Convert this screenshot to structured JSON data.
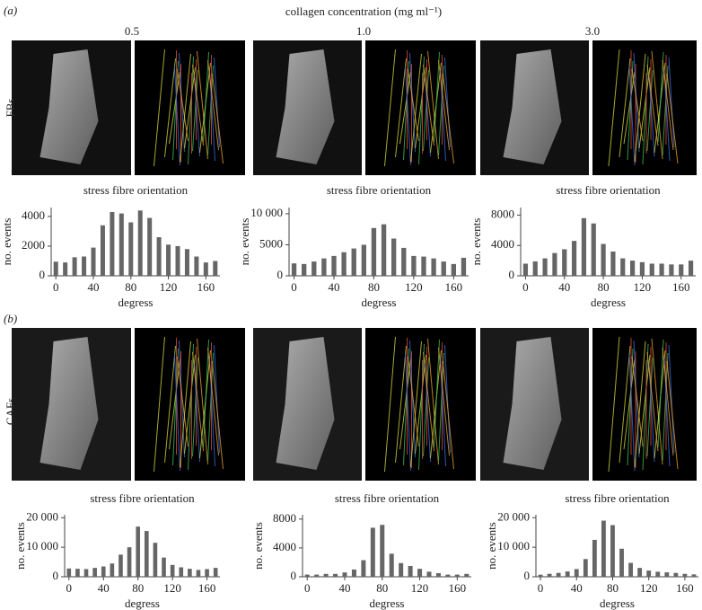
{
  "figure": {
    "panel_a": "(a)",
    "panel_b": "(b)",
    "heading": "collagen concentration (mg ml⁻¹)",
    "concentrations": [
      "0.5",
      "1.0",
      "3.0"
    ],
    "rows": [
      "FBs",
      "CAFs"
    ]
  },
  "chart_data": [
    {
      "type": "bar",
      "title": "stress fibre orientation",
      "x_label": "degress",
      "y_label": "no. events",
      "color": "#666666",
      "x": [
        0,
        10,
        20,
        30,
        40,
        50,
        60,
        70,
        80,
        90,
        100,
        110,
        120,
        130,
        140,
        150,
        160,
        170
      ],
      "values": [
        950,
        900,
        1250,
        1300,
        1900,
        3400,
        4300,
        4200,
        3600,
        4400,
        3900,
        2600,
        2100,
        2000,
        1800,
        1300,
        900,
        1000
      ],
      "xlim": [
        -5,
        175
      ],
      "xticks": [
        0,
        40,
        80,
        120,
        160
      ],
      "ylim": [
        0,
        4600
      ],
      "yticks": [
        0,
        2000,
        4000
      ]
    },
    {
      "type": "bar",
      "title": "stress fibre orientation",
      "x_label": "degress",
      "y_label": "no. events",
      "color": "#666666",
      "x": [
        0,
        10,
        20,
        30,
        40,
        50,
        60,
        70,
        80,
        90,
        100,
        110,
        120,
        130,
        140,
        150,
        160,
        170
      ],
      "values": [
        2000,
        1900,
        2300,
        2800,
        3200,
        3800,
        4400,
        5000,
        7700,
        8300,
        6000,
        4500,
        3200,
        3100,
        2800,
        2300,
        1900,
        2900
      ],
      "xlim": [
        -5,
        175
      ],
      "xticks": [
        0,
        40,
        80,
        120,
        160
      ],
      "ylim": [
        0,
        11000
      ],
      "yticks": [
        0,
        5000,
        {
          "value": 10000,
          "label": "10 000"
        }
      ]
    },
    {
      "type": "bar",
      "title": "stress fibre orientation",
      "x_label": "degress",
      "y_label": "no. events",
      "color": "#666666",
      "x": [
        0,
        10,
        20,
        30,
        40,
        50,
        60,
        70,
        80,
        90,
        100,
        110,
        120,
        130,
        140,
        150,
        160,
        170
      ],
      "values": [
        1600,
        1900,
        2300,
        3000,
        3500,
        4600,
        7600,
        6900,
        4200,
        3200,
        2300,
        2000,
        1800,
        1600,
        1600,
        1500,
        1500,
        2000
      ],
      "xlim": [
        -5,
        175
      ],
      "xticks": [
        0,
        40,
        80,
        120,
        160
      ],
      "ylim": [
        0,
        9000
      ],
      "yticks": [
        0,
        4000,
        8000
      ]
    },
    {
      "type": "bar",
      "title": "stress fibre orientation",
      "x_label": "degress",
      "y_label": "no. events",
      "color": "#666666",
      "x": [
        0,
        10,
        20,
        30,
        40,
        50,
        60,
        70,
        80,
        90,
        100,
        110,
        120,
        130,
        140,
        150,
        160,
        170
      ],
      "values": [
        2800,
        2700,
        2600,
        3000,
        3500,
        4500,
        7500,
        10000,
        17000,
        15500,
        11500,
        6500,
        4000,
        3200,
        2700,
        2300,
        2600,
        3000
      ],
      "xlim": [
        -5,
        175
      ],
      "xticks": [
        0,
        40,
        80,
        120,
        160
      ],
      "ylim": [
        0,
        21000
      ],
      "yticks": [
        0,
        {
          "value": 10000,
          "label": "10 000"
        },
        {
          "value": 20000,
          "label": "20 000"
        }
      ]
    },
    {
      "type": "bar",
      "title": "stress fibre orientation",
      "x_label": "degress",
      "y_label": "no. events",
      "color": "#666666",
      "x": [
        0,
        10,
        20,
        30,
        40,
        50,
        60,
        70,
        80,
        90,
        100,
        110,
        120,
        130,
        140,
        150,
        160,
        170
      ],
      "values": [
        300,
        300,
        400,
        400,
        600,
        1000,
        2300,
        6800,
        7200,
        3200,
        1900,
        1500,
        1100,
        700,
        500,
        300,
        300,
        400
      ],
      "xlim": [
        -5,
        175
      ],
      "xticks": [
        0,
        40,
        80,
        120,
        160
      ],
      "ylim": [
        0,
        8600
      ],
      "yticks": [
        0,
        4000,
        8000
      ]
    },
    {
      "type": "bar",
      "title": "stress fibre orientation",
      "x_label": "degress",
      "y_label": "no. events",
      "color": "#666666",
      "x": [
        0,
        10,
        20,
        30,
        40,
        50,
        60,
        70,
        80,
        90,
        100,
        110,
        120,
        130,
        140,
        150,
        160,
        170
      ],
      "values": [
        700,
        1000,
        1300,
        1800,
        2600,
        6000,
        12500,
        19000,
        17500,
        9500,
        4700,
        3000,
        2100,
        1700,
        1500,
        1300,
        1000,
        800
      ],
      "xlim": [
        -5,
        175
      ],
      "xticks": [
        0,
        40,
        80,
        120,
        160
      ],
      "ylim": [
        0,
        21000
      ],
      "yticks": [
        0,
        {
          "value": 10000,
          "label": "10 000"
        },
        {
          "value": 20000,
          "label": "20 000"
        }
      ]
    }
  ]
}
